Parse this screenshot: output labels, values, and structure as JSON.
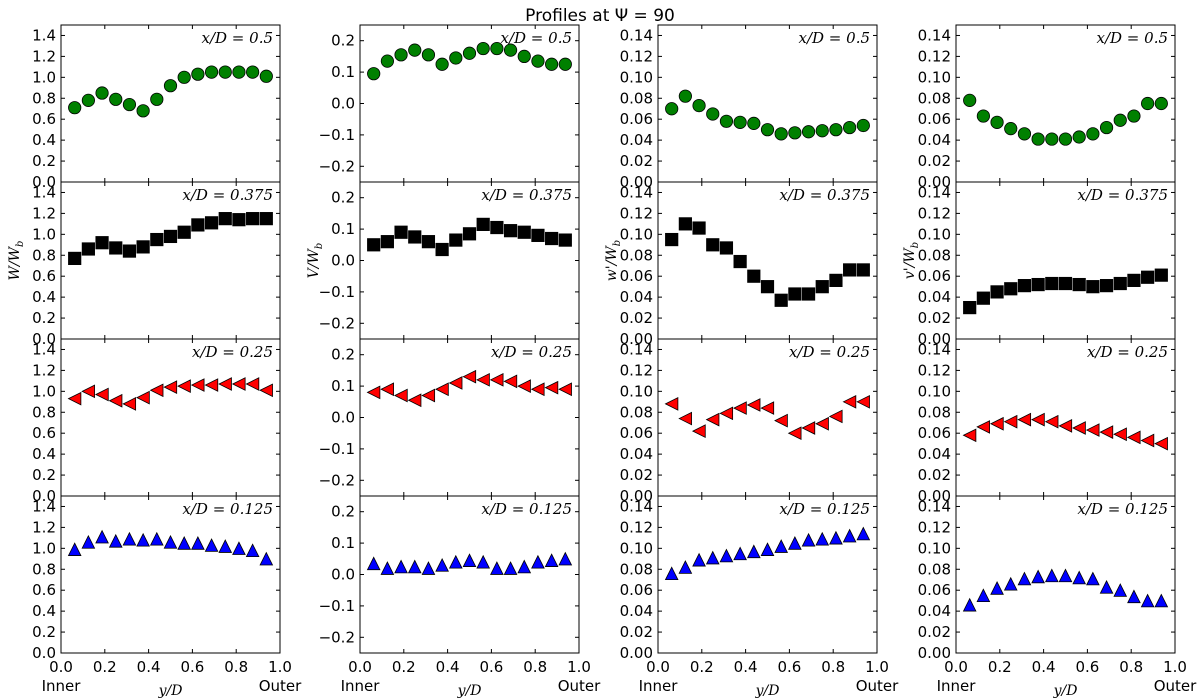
{
  "title": "Profiles at Ψ = 90",
  "x_label": "y/D",
  "x_endpoints": {
    "inner": "Inner",
    "outer": "Outer"
  },
  "x_ticks": [
    "0.0",
    "0.2",
    "0.4",
    "0.6",
    "0.8",
    "1.0"
  ],
  "y_labels": [
    "W/W_b",
    "V/W_b",
    "w'/W_b",
    "v'/W_b"
  ],
  "row_labels": [
    "x/D = 0.5",
    "x/D = 0.375",
    "x/D = 0.25",
    "x/D = 0.125"
  ],
  "row_styles": [
    {
      "marker": "circle",
      "color": "#008000"
    },
    {
      "marker": "square",
      "color": "#000000"
    },
    {
      "marker": "triangle-left",
      "color": "#ff0000"
    },
    {
      "marker": "triangle-up",
      "color": "#0000ff"
    }
  ],
  "chart_data": {
    "type": "scatter",
    "x": [
      0.0625,
      0.125,
      0.1875,
      0.25,
      0.3125,
      0.375,
      0.4375,
      0.5,
      0.5625,
      0.625,
      0.6875,
      0.75,
      0.8125,
      0.875,
      0.9375
    ],
    "xlim": [
      0,
      1
    ],
    "columns": [
      {
        "ylabel": "W/W_b",
        "ylim": [
          0,
          1.5
        ],
        "yticks": [
          "0.0",
          "0.2",
          "0.4",
          "0.6",
          "0.8",
          "1.0",
          "1.2",
          "1.4"
        ],
        "rows": [
          {
            "label": "x/D = 0.5",
            "values": [
              0.71,
              0.78,
              0.85,
              0.79,
              0.74,
              0.68,
              0.79,
              0.92,
              1.0,
              1.03,
              1.05,
              1.05,
              1.05,
              1.05,
              1.01
            ]
          },
          {
            "label": "x/D = 0.375",
            "values": [
              0.77,
              0.86,
              0.92,
              0.87,
              0.84,
              0.88,
              0.95,
              0.98,
              1.02,
              1.09,
              1.11,
              1.15,
              1.14,
              1.15,
              1.15
            ]
          },
          {
            "label": "x/D = 0.25",
            "values": [
              0.93,
              1.0,
              0.97,
              0.91,
              0.88,
              0.94,
              1.01,
              1.04,
              1.05,
              1.06,
              1.06,
              1.07,
              1.07,
              1.07,
              1.01
            ]
          },
          {
            "label": "x/D = 0.125",
            "values": [
              0.99,
              1.06,
              1.11,
              1.07,
              1.09,
              1.08,
              1.09,
              1.06,
              1.05,
              1.05,
              1.03,
              1.02,
              1.0,
              0.98,
              0.9
            ]
          }
        ]
      },
      {
        "ylabel": "V/W_b",
        "ylim": [
          -0.25,
          0.25
        ],
        "yticks": [
          "−0.2",
          "−0.1",
          "0.0",
          "0.1",
          "0.2"
        ],
        "rows": [
          {
            "label": "x/D = 0.5",
            "values": [
              0.095,
              0.135,
              0.155,
              0.17,
              0.155,
              0.125,
              0.145,
              0.16,
              0.175,
              0.175,
              0.17,
              0.15,
              0.135,
              0.125,
              0.125
            ]
          },
          {
            "label": "x/D = 0.375",
            "values": [
              0.05,
              0.06,
              0.09,
              0.075,
              0.06,
              0.035,
              0.065,
              0.085,
              0.115,
              0.105,
              0.095,
              0.09,
              0.08,
              0.07,
              0.065
            ]
          },
          {
            "label": "x/D = 0.25",
            "values": [
              0.08,
              0.09,
              0.07,
              0.055,
              0.07,
              0.09,
              0.11,
              0.13,
              0.12,
              0.12,
              0.115,
              0.1,
              0.09,
              0.095,
              0.09
            ]
          },
          {
            "label": "x/D = 0.125",
            "values": [
              0.035,
              0.02,
              0.025,
              0.025,
              0.02,
              0.03,
              0.04,
              0.045,
              0.04,
              0.02,
              0.02,
              0.025,
              0.04,
              0.045,
              0.05
            ]
          }
        ]
      },
      {
        "ylabel": "w'/W_b",
        "ylim": [
          0,
          0.15
        ],
        "yticks": [
          "0.00",
          "0.02",
          "0.04",
          "0.06",
          "0.08",
          "0.10",
          "0.12",
          "0.14"
        ],
        "rows": [
          {
            "label": "x/D = 0.5",
            "values": [
              0.07,
              0.082,
              0.073,
              0.065,
              0.058,
              0.057,
              0.056,
              0.05,
              0.046,
              0.047,
              0.048,
              0.049,
              0.05,
              0.052,
              0.054
            ]
          },
          {
            "label": "x/D = 0.375",
            "values": [
              0.095,
              0.11,
              0.106,
              0.09,
              0.087,
              0.074,
              0.06,
              0.05,
              0.037,
              0.043,
              0.043,
              0.05,
              0.056,
              0.066,
              0.066
            ]
          },
          {
            "label": "x/D = 0.25",
            "values": [
              0.088,
              0.074,
              0.062,
              0.073,
              0.079,
              0.084,
              0.087,
              0.084,
              0.072,
              0.06,
              0.065,
              0.069,
              0.076,
              0.09,
              0.09
            ]
          },
          {
            "label": "x/D = 0.125",
            "values": [
              0.076,
              0.082,
              0.089,
              0.091,
              0.093,
              0.095,
              0.097,
              0.099,
              0.102,
              0.105,
              0.108,
              0.109,
              0.11,
              0.112,
              0.114
            ]
          }
        ]
      },
      {
        "ylabel": "v'/W_b",
        "ylim": [
          0,
          0.15
        ],
        "yticks": [
          "0.00",
          "0.02",
          "0.04",
          "0.06",
          "0.08",
          "0.10",
          "0.12",
          "0.14"
        ],
        "rows": [
          {
            "label": "x/D = 0.5",
            "values": [
              0.078,
              0.063,
              0.057,
              0.051,
              0.046,
              0.041,
              0.041,
              0.041,
              0.043,
              0.046,
              0.052,
              0.059,
              0.063,
              0.075,
              0.075
            ]
          },
          {
            "label": "x/D = 0.375",
            "values": [
              0.03,
              0.039,
              0.045,
              0.048,
              0.051,
              0.052,
              0.053,
              0.053,
              0.052,
              0.05,
              0.051,
              0.053,
              0.056,
              0.059,
              0.061
            ]
          },
          {
            "label": "x/D = 0.25",
            "values": [
              0.058,
              0.066,
              0.069,
              0.071,
              0.073,
              0.073,
              0.071,
              0.067,
              0.065,
              0.063,
              0.061,
              0.059,
              0.056,
              0.053,
              0.05
            ]
          },
          {
            "label": "x/D = 0.125",
            "values": [
              0.046,
              0.055,
              0.062,
              0.066,
              0.071,
              0.073,
              0.074,
              0.074,
              0.072,
              0.071,
              0.063,
              0.06,
              0.054,
              0.05,
              0.05
            ]
          }
        ]
      }
    ]
  }
}
